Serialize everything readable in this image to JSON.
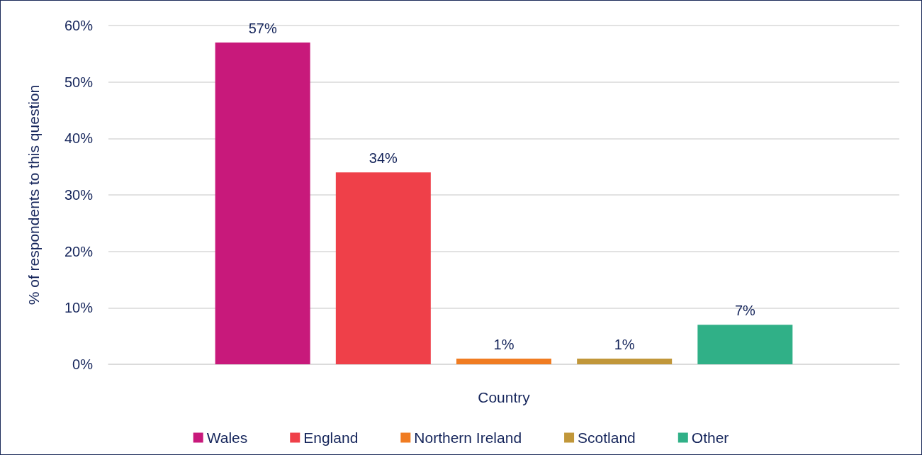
{
  "chart_data": {
    "type": "bar",
    "xlabel": "Country",
    "ylabel": "% of respondents to this question",
    "categories": [
      null
    ],
    "series": [
      {
        "name": "Wales",
        "color": "#c8197b",
        "values": [
          57
        ],
        "value_labels": [
          "57%"
        ]
      },
      {
        "name": "England",
        "color": "#ef4049",
        "values": [
          34
        ],
        "value_labels": [
          "34%"
        ]
      },
      {
        "name": "Northern Ireland",
        "color": "#f07c22",
        "values": [
          1
        ],
        "value_labels": [
          "1%"
        ]
      },
      {
        "name": "Scotland",
        "color": "#c1973a",
        "values": [
          1
        ],
        "value_labels": [
          "1%"
        ]
      },
      {
        "name": "Other",
        "color": "#30b087",
        "values": [
          7
        ],
        "value_labels": [
          "7%"
        ]
      }
    ],
    "ylim": [
      0,
      60
    ],
    "yticks": [
      {
        "value": 0,
        "label": "0%"
      },
      {
        "value": 10,
        "label": "10%"
      },
      {
        "value": 20,
        "label": "20%"
      },
      {
        "value": 30,
        "label": "30%"
      },
      {
        "value": 40,
        "label": "40%"
      },
      {
        "value": 50,
        "label": "50%"
      },
      {
        "value": 60,
        "label": "60%"
      }
    ],
    "grid": "y",
    "legend": "bottom"
  }
}
